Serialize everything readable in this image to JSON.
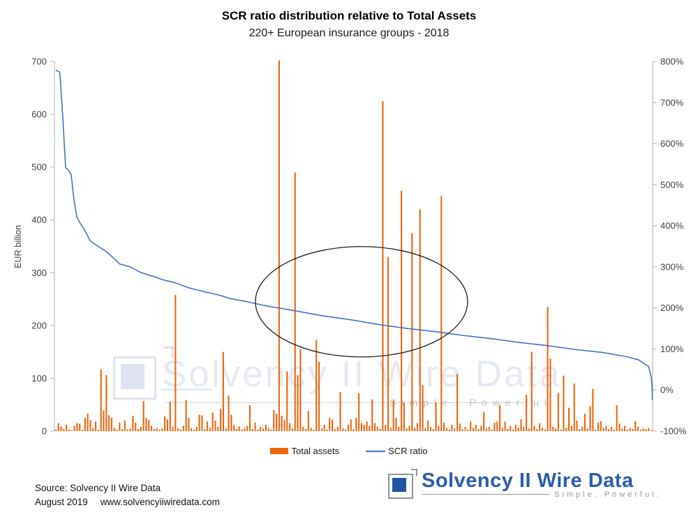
{
  "title": "SCR ratio distribution relative to Total Assets",
  "subtitle": "220+ European insurance groups - 2018",
  "chart_data": {
    "type": "bar",
    "note": "dual-axis combo: orange bars = Total assets (left axis, EUR billion), blue line = SCR ratio (right axis, %), ~225 insurance groups ranked by descending SCR ratio",
    "left_axis": {
      "label": "EUR billion",
      "range": [
        0,
        700
      ],
      "ticks": [
        0,
        100,
        200,
        300,
        400,
        500,
        600,
        700
      ]
    },
    "right_axis": {
      "label": "",
      "range": [
        -100,
        800
      ],
      "ticks": [
        -100,
        0,
        100,
        200,
        300,
        400,
        500,
        600,
        700,
        800
      ],
      "tick_suffix": "%"
    },
    "grid": "off",
    "legend_position": "bottom-center",
    "series": [
      {
        "name": "Total assets",
        "kind": "bar",
        "axis": "left",
        "color": "#EE650C",
        "values": [
          3,
          15,
          9,
          4,
          12,
          3,
          2,
          10,
          15,
          14,
          3,
          25,
          33,
          21,
          6,
          18,
          3,
          117,
          39,
          106,
          30,
          25,
          6,
          3,
          16,
          4,
          20,
          3,
          5,
          29,
          16,
          4,
          8,
          57,
          25,
          21,
          10,
          4,
          6,
          3,
          5,
          28,
          22,
          56,
          8,
          258,
          5,
          3,
          10,
          59,
          25,
          6,
          3,
          8,
          31,
          30,
          4,
          18,
          6,
          35,
          20,
          8,
          42,
          150,
          5,
          67,
          31,
          12,
          4,
          9,
          3,
          6,
          10,
          49,
          4,
          16,
          3,
          8,
          5,
          12,
          6,
          3,
          40,
          33,
          702,
          29,
          21,
          113,
          15,
          5,
          490,
          106,
          155,
          8,
          4,
          38,
          6,
          3,
          172,
          131,
          5,
          12,
          3,
          25,
          22,
          4,
          8,
          74,
          5,
          3,
          12,
          22,
          4,
          25,
          72,
          15,
          12,
          18,
          10,
          60,
          15,
          8,
          4,
          625,
          12,
          330,
          6,
          58,
          25,
          8,
          455,
          54,
          5,
          10,
          375,
          6,
          15,
          420,
          87,
          5,
          20,
          8,
          4,
          54,
          10,
          445,
          16,
          6,
          3,
          12,
          5,
          108,
          14,
          4,
          8,
          3,
          18,
          6,
          12,
          4,
          10,
          36,
          5,
          8,
          3,
          16,
          18,
          49,
          6,
          18,
          4,
          10,
          3,
          12,
          6,
          22,
          8,
          69,
          5,
          150,
          10,
          4,
          15,
          6,
          3,
          235,
          137,
          8,
          5,
          72,
          3,
          105,
          6,
          44,
          10,
          90,
          20,
          4,
          8,
          33,
          5,
          47,
          80,
          3,
          16,
          19,
          6,
          10,
          4,
          8,
          3,
          49,
          14,
          5,
          10,
          3,
          6,
          4,
          19,
          8,
          3,
          5,
          4,
          6,
          2
        ]
      },
      {
        "name": "SCR ratio",
        "kind": "line",
        "axis": "right",
        "color": "#4472C4",
        "keypoints_index_percent": [
          [
            0,
            779
          ],
          [
            1.5,
            774
          ],
          [
            2,
            728
          ],
          [
            2.6,
            669
          ],
          [
            3.7,
            541
          ],
          [
            4.7,
            536
          ],
          [
            5.8,
            524
          ],
          [
            6.8,
            465
          ],
          [
            7.9,
            422
          ],
          [
            8.9,
            409
          ],
          [
            11,
            388
          ],
          [
            13,
            363
          ],
          [
            15,
            354
          ],
          [
            19,
            337
          ],
          [
            22,
            320
          ],
          [
            24,
            307
          ],
          [
            28,
            300
          ],
          [
            32,
            286
          ],
          [
            36,
            278
          ],
          [
            40,
            269
          ],
          [
            45,
            261
          ],
          [
            50,
            249
          ],
          [
            56,
            239
          ],
          [
            61,
            232
          ],
          [
            66,
            222
          ],
          [
            72,
            215
          ],
          [
            79,
            205
          ],
          [
            90,
            193
          ],
          [
            100,
            181
          ],
          [
            111,
            171
          ],
          [
            122,
            159
          ],
          [
            132,
            150
          ],
          [
            143,
            142
          ],
          [
            153,
            133
          ],
          [
            164,
            125
          ],
          [
            174,
            116
          ],
          [
            185,
            108
          ],
          [
            195,
            99
          ],
          [
            206,
            91
          ],
          [
            214,
            82
          ],
          [
            219,
            74
          ],
          [
            223,
            57
          ],
          [
            224,
            31
          ],
          [
            224.5,
            -3
          ],
          [
            224.9,
            -25
          ]
        ]
      }
    ],
    "n_points": 225,
    "annotation_ellipse": {
      "cx_index": 115,
      "cy_percent": 215,
      "note": "black ellipse highlighting the central cluster"
    }
  },
  "legend": [
    {
      "label": "Total assets",
      "color": "#EE650C",
      "marker": "bar"
    },
    {
      "label": "SCR ratio",
      "color": "#4472C4",
      "marker": "line"
    }
  ],
  "watermark": {
    "text": "Solvency II Wire Data",
    "tagline": "Simple. Powerful."
  },
  "footer": {
    "source_line1": "Source: Solvency II Wire Data",
    "source_date": "August 2019",
    "source_url": "www.solvencyiiwiredata.com",
    "logo_text": "Solvency II Wire Data",
    "logo_tagline": "Simple. Powerful."
  },
  "colors": {
    "bar": "#EE650C",
    "line": "#4472C4",
    "axis": "#BFBFBF",
    "tick_text": "#404040",
    "logo_blue": "#2B5DAD"
  }
}
